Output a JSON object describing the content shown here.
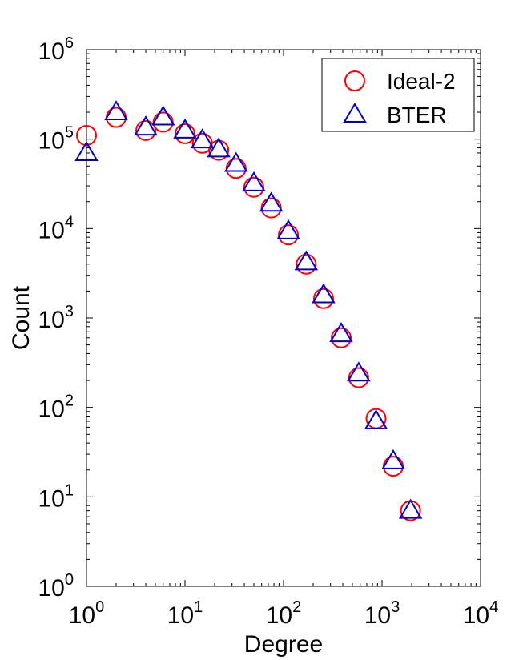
{
  "chart_data": {
    "type": "scatter",
    "xlabel": "Degree",
    "ylabel": "Count",
    "xscale": "log",
    "yscale": "log",
    "xlim": [
      1,
      10000
    ],
    "ylim": [
      1,
      1000000
    ],
    "x_ticks": [
      {
        "base": "10",
        "exp": "0",
        "value": 1
      },
      {
        "base": "10",
        "exp": "1",
        "value": 10
      },
      {
        "base": "10",
        "exp": "2",
        "value": 100
      },
      {
        "base": "10",
        "exp": "3",
        "value": 1000
      },
      {
        "base": "10",
        "exp": "4",
        "value": 10000
      }
    ],
    "y_ticks": [
      {
        "base": "10",
        "exp": "0",
        "value": 1
      },
      {
        "base": "10",
        "exp": "1",
        "value": 10
      },
      {
        "base": "10",
        "exp": "2",
        "value": 100
      },
      {
        "base": "10",
        "exp": "3",
        "value": 1000
      },
      {
        "base": "10",
        "exp": "4",
        "value": 10000
      },
      {
        "base": "10",
        "exp": "5",
        "value": 100000
      },
      {
        "base": "10",
        "exp": "6",
        "value": 1000000
      }
    ],
    "grid": false,
    "legend": "top-right",
    "series": [
      {
        "name": "Ideal-2",
        "marker": "circle",
        "color": "#ff0000",
        "points": [
          [
            1,
            110000
          ],
          [
            2,
            175000
          ],
          [
            4,
            125000
          ],
          [
            6,
            155000
          ],
          [
            10,
            115000
          ],
          [
            15,
            90000
          ],
          [
            22,
            75000
          ],
          [
            33,
            47000
          ],
          [
            50,
            29000
          ],
          [
            75,
            17000
          ],
          [
            112,
            8500
          ],
          [
            170,
            4000
          ],
          [
            255,
            1650
          ],
          [
            385,
            600
          ],
          [
            580,
            215
          ],
          [
            870,
            75
          ],
          [
            1300,
            22
          ],
          [
            1950,
            7
          ]
        ]
      },
      {
        "name": "BTER",
        "marker": "triangle",
        "color": "#0000cc",
        "points": [
          [
            1,
            70000
          ],
          [
            2,
            200000
          ],
          [
            4,
            135000
          ],
          [
            6,
            175000
          ],
          [
            10,
            125000
          ],
          [
            15,
            97000
          ],
          [
            22,
            77000
          ],
          [
            33,
            53000
          ],
          [
            50,
            32000
          ],
          [
            75,
            19000
          ],
          [
            112,
            9300
          ],
          [
            170,
            4200
          ],
          [
            255,
            1800
          ],
          [
            385,
            660
          ],
          [
            580,
            240
          ],
          [
            870,
            70
          ],
          [
            1300,
            25
          ],
          [
            1950,
            7
          ]
        ]
      }
    ]
  }
}
